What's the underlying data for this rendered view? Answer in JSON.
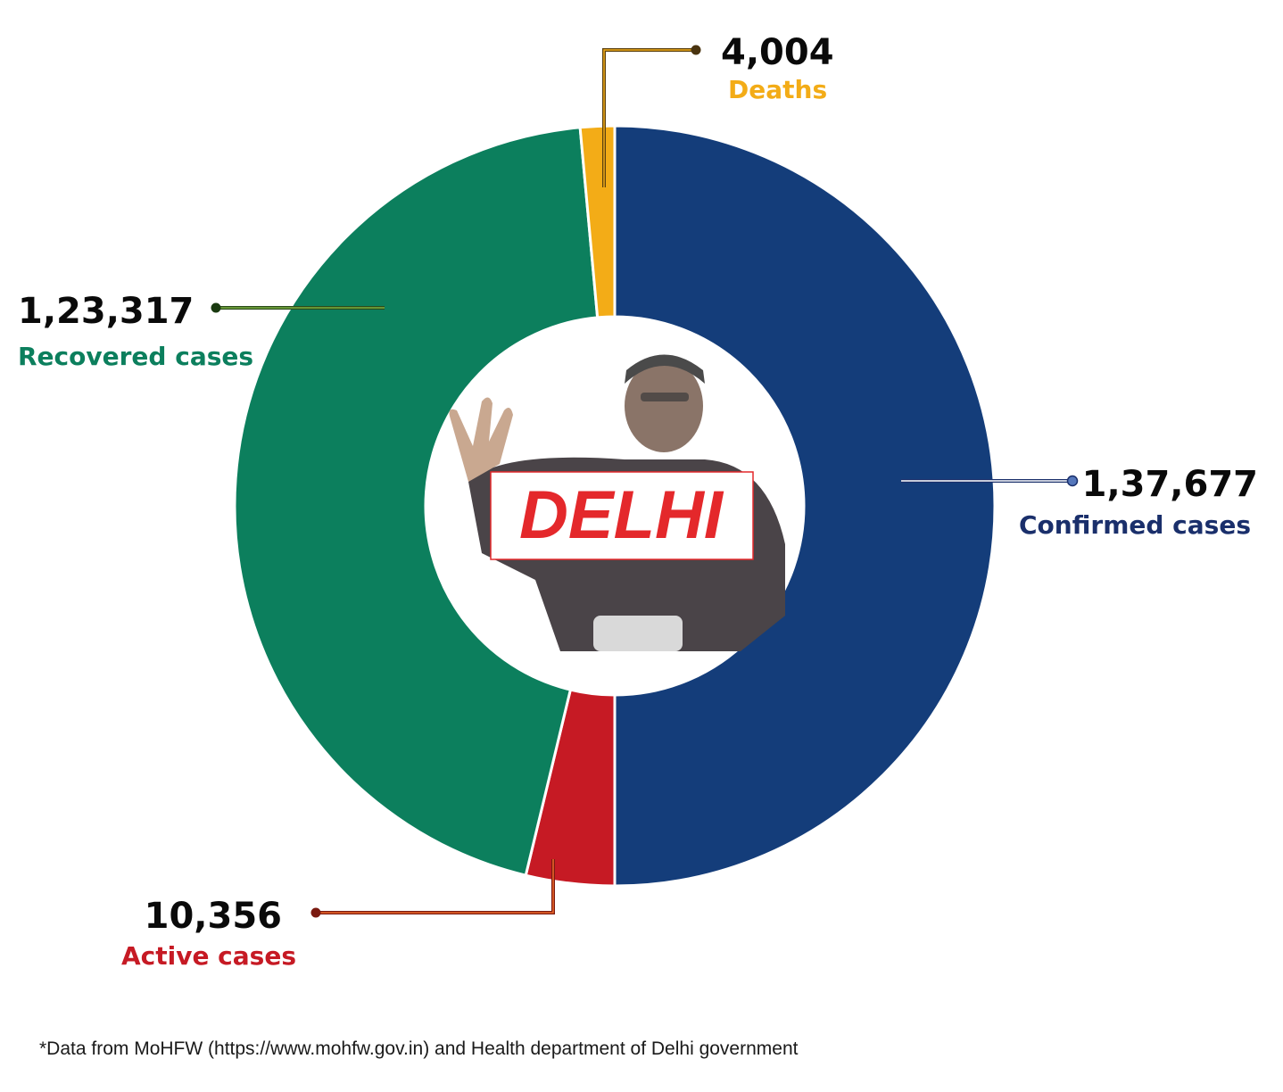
{
  "chart_data": {
    "type": "donut",
    "center_label": "DELHI",
    "segments": [
      {
        "name": "Confirmed cases",
        "value_label": "1,37,677",
        "value": 137677,
        "color": "#143d7a",
        "label_color": "#1a2f6b"
      },
      {
        "name": "Active cases",
        "value_label": "10,356",
        "value": 10356,
        "color": "#c61a24",
        "label_color": "#c61a24"
      },
      {
        "name": "Recovered cases",
        "value_label": "1,23,317",
        "value": 123317,
        "color": "#0c7f5d",
        "label_color": "#0c7f5d"
      },
      {
        "name": "Deaths",
        "value_label": "4,004",
        "value": 4004,
        "color": "#f3ac17",
        "label_color": "#f3ac17"
      }
    ]
  },
  "footnote": "*Data from MoHFW (https://www.mohfw.gov.in) and Health department of Delhi government"
}
